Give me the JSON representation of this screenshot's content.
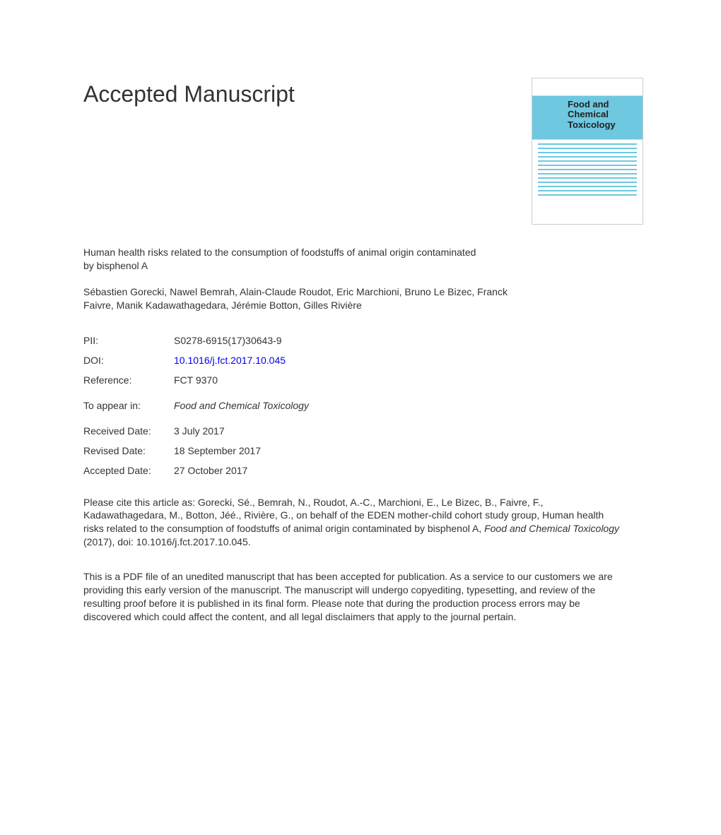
{
  "heading": "Accepted Manuscript",
  "journal_cover": {
    "title_line1": "Food and",
    "title_line2": "Chemical",
    "title_line3": "Toxicology",
    "line_count": 13,
    "colors": {
      "accent": "#6ec8e0",
      "border": "#cccccc",
      "background": "#ffffff",
      "text": "#222222"
    }
  },
  "article": {
    "title": "Human health risks related to the consumption of foodstuffs of animal origin contaminated by bisphenol A",
    "authors": "Sébastien Gorecki, Nawel Bemrah, Alain-Claude Roudot, Eric Marchioni, Bruno Le Bizec, Franck Faivre, Manik Kadawathagedara, Jérémie Botton, Gilles Rivière"
  },
  "metadata": {
    "pii": {
      "label": "PII:",
      "value": "S0278-6915(17)30643-9"
    },
    "doi": {
      "label": "DOI:",
      "value": "10.1016/j.fct.2017.10.045"
    },
    "reference": {
      "label": "Reference:",
      "value": "FCT 9370"
    },
    "to_appear": {
      "label": "To appear in:",
      "value": "Food and Chemical Toxicology"
    },
    "received": {
      "label": "Received Date:",
      "value": "3 July 2017"
    },
    "revised": {
      "label": "Revised Date:",
      "value": "18 September 2017"
    },
    "accepted": {
      "label": "Accepted Date:",
      "value": "27 October 2017"
    }
  },
  "citation": {
    "prefix": "Please cite this article as: Gorecki, Sé., Bemrah, N., Roudot, A.-C., Marchioni, E., Le Bizec, B., Faivre, F., Kadawathagedara, M., Botton, Jéé., Rivière, G., on behalf of the EDEN mother-child cohort study group, Human health risks related to the consumption of foodstuffs of animal origin contaminated by bisphenol A, ",
    "journal": "Food and Chemical Toxicology",
    "suffix": " (2017), doi: 10.1016/j.fct.2017.10.045."
  },
  "disclaimer": "This is a PDF file of an unedited manuscript that has been accepted for publication. As a service to our customers we are providing this early version of the manuscript. The manuscript will undergo copyediting, typesetting, and review of the resulting proof before it is published in its final form. Please note that during the production process errors may be discovered which could affect the content, and all legal disclaimers that apply to the journal pertain.",
  "colors": {
    "text": "#333333",
    "link": "#0000ee",
    "background": "#ffffff"
  },
  "typography": {
    "heading_fontsize": 32,
    "body_fontsize": 14,
    "font_family": "Arial, Helvetica, sans-serif"
  }
}
